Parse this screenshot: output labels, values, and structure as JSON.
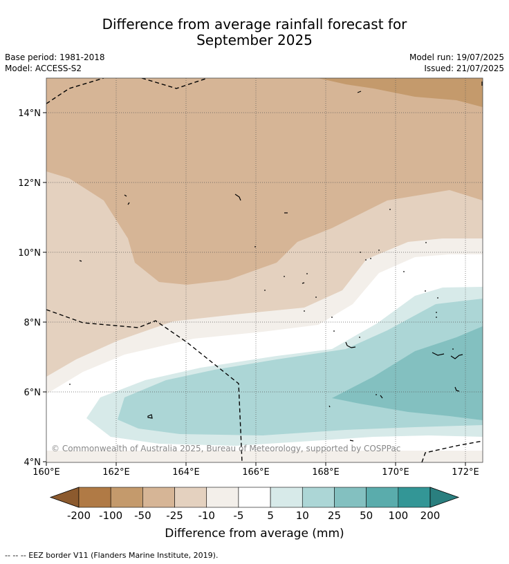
{
  "header": {
    "title_line1": "Difference from average rainfall forecast for",
    "title_line2": "September 2025",
    "base_period": "Base period: 1981-2018",
    "model": "Model: ACCESS-S2",
    "model_run": "Model run: 19/07/2025",
    "issued": "Issued: 21/07/2025"
  },
  "map": {
    "lat_labels": [
      "14°N",
      "12°N",
      "10°N",
      "8°N",
      "6°N",
      "4°N"
    ],
    "lon_labels": [
      "160°E",
      "162°E",
      "164°E",
      "166°E",
      "168°E",
      "170°E",
      "172°E"
    ],
    "copyright": "© Commonwealth of Australia 2025, Bureau of Meteorology, supported by COSPPac"
  },
  "colorbar": {
    "ticks": [
      "-200",
      "-100",
      "-50",
      "-25",
      "-10",
      "-5",
      "5",
      "10",
      "25",
      "50",
      "100",
      "200"
    ],
    "colors": [
      "#8c5a2e",
      "#b07a45",
      "#c49a6c",
      "#d6b596",
      "#e4d1bf",
      "#f3efea",
      "#ffffff",
      "#d7eae9",
      "#acd6d6",
      "#83c0c0",
      "#5aacac",
      "#339696",
      "#2a7f7f"
    ],
    "label": "Difference from average (mm)"
  },
  "footer": {
    "legend_text": "--  --  -- EEZ border V11 (Flanders Marine Institute, 2019)."
  }
}
